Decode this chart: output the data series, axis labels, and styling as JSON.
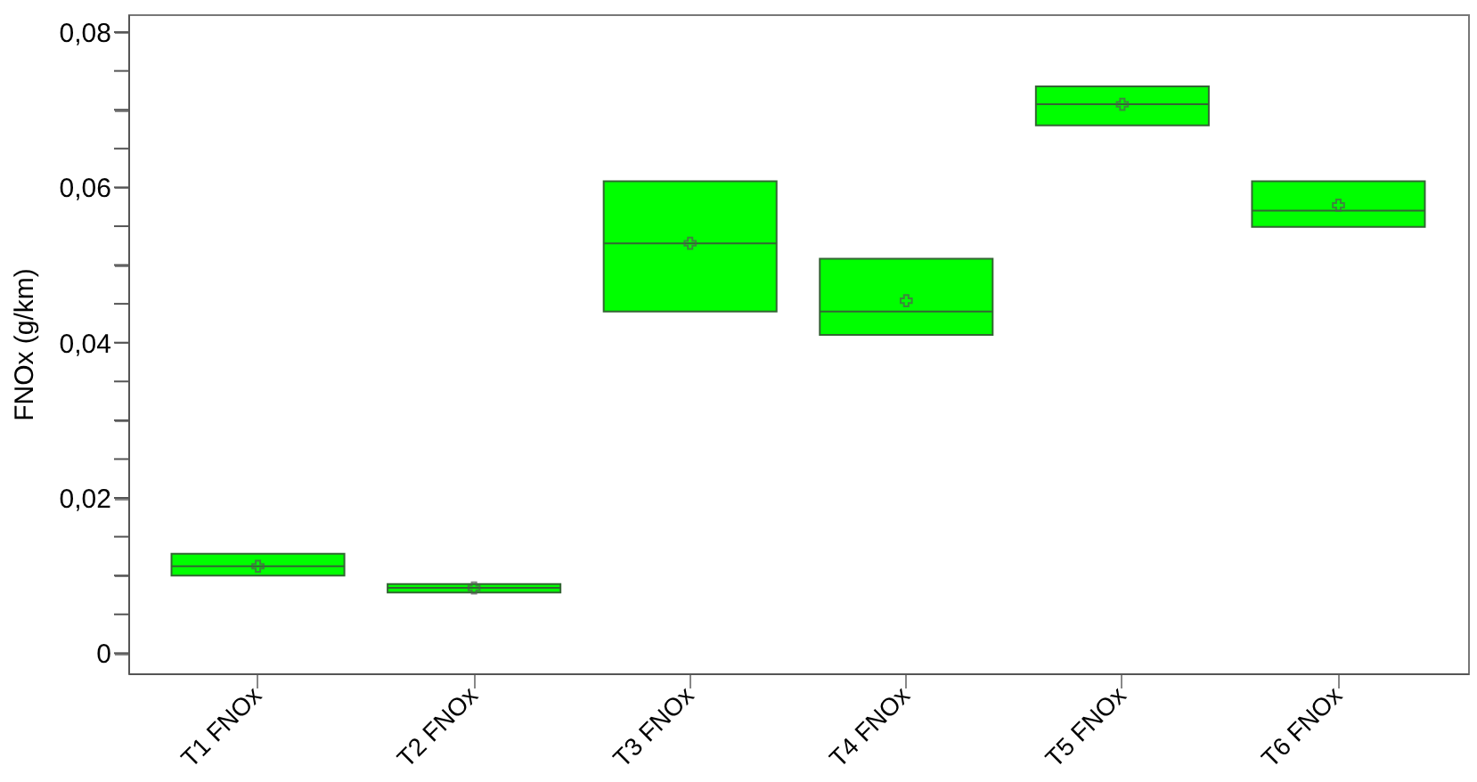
{
  "chart_data": {
    "type": "box",
    "ylabel": "FNOx (g/km)",
    "categories": [
      "T1 FNOx",
      "T2 FNOx",
      "T3 FNOx",
      "T4 FNOx",
      "T5 FNOx",
      "T6 FNOx"
    ],
    "color": "#00ff00",
    "boxes": [
      {
        "low": 0.01,
        "q1": 0.01,
        "median": 0.0112,
        "q3": 0.0128,
        "high": 0.0128,
        "mean": 0.0112
      },
      {
        "low": 0.0078,
        "q1": 0.0078,
        "median": 0.0084,
        "q3": 0.0089,
        "high": 0.0089,
        "mean": 0.0084
      },
      {
        "low": 0.044,
        "q1": 0.044,
        "median": 0.0528,
        "q3": 0.0608,
        "high": 0.0608,
        "mean": 0.0528
      },
      {
        "low": 0.041,
        "q1": 0.041,
        "median": 0.044,
        "q3": 0.0508,
        "high": 0.0508,
        "mean": 0.0454
      },
      {
        "low": 0.068,
        "q1": 0.068,
        "median": 0.0707,
        "q3": 0.073,
        "high": 0.073,
        "mean": 0.0707
      },
      {
        "low": 0.0549,
        "q1": 0.0549,
        "median": 0.057,
        "q3": 0.0608,
        "high": 0.0608,
        "mean": 0.0577
      }
    ],
    "ylim": [
      -0.0026,
      0.0823
    ],
    "yticks": [
      {
        "value": 0,
        "label": "0"
      },
      {
        "value": 0.005,
        "label": null
      },
      {
        "value": 0.01,
        "label": null
      },
      {
        "value": 0.015,
        "label": null
      },
      {
        "value": 0.02,
        "label": "0,02"
      },
      {
        "value": 0.025,
        "label": null
      },
      {
        "value": 0.03,
        "label": null
      },
      {
        "value": 0.035,
        "label": null
      },
      {
        "value": 0.04,
        "label": "0,04"
      },
      {
        "value": 0.045,
        "label": null
      },
      {
        "value": 0.05,
        "label": null
      },
      {
        "value": 0.055,
        "label": null
      },
      {
        "value": 0.06,
        "label": "0,06"
      },
      {
        "value": 0.065,
        "label": null
      },
      {
        "value": 0.07,
        "label": null
      },
      {
        "value": 0.075,
        "label": null
      },
      {
        "value": 0.08,
        "label": "0,08"
      }
    ],
    "grid": false
  }
}
